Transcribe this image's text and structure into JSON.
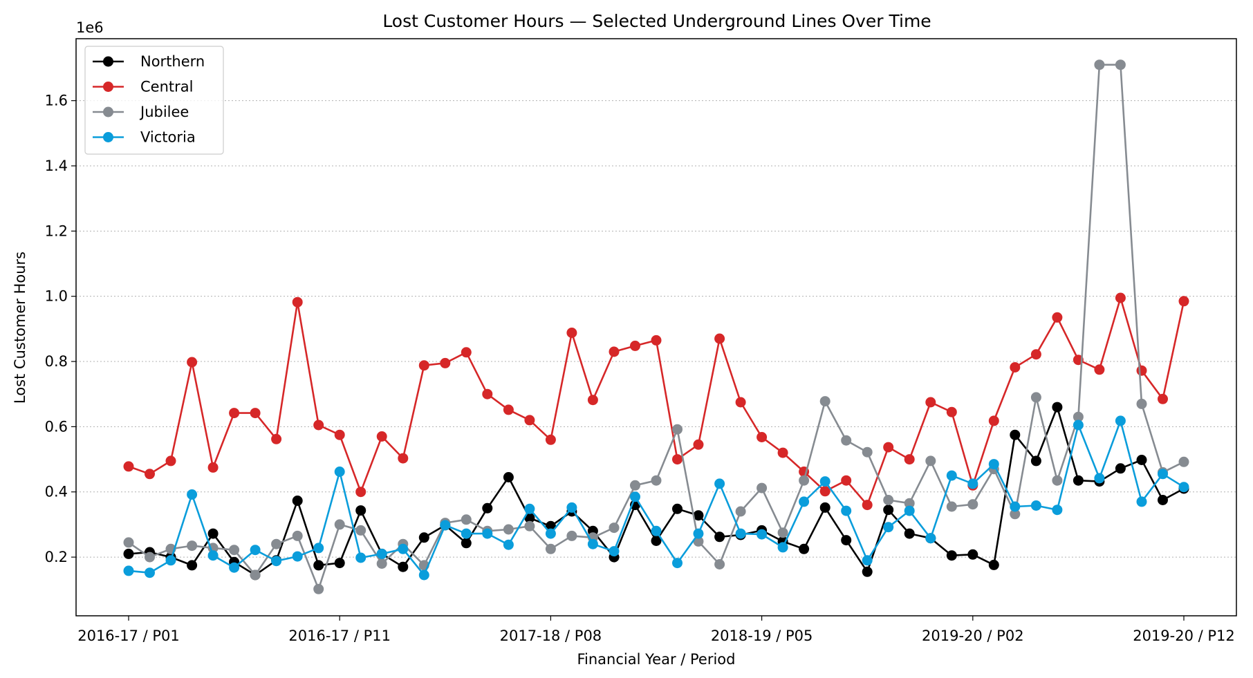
{
  "chart_data": {
    "type": "line",
    "title": "Lost Customer Hours — Selected Underground Lines Over Time",
    "xlabel": "Financial Year / Period",
    "ylabel": "Lost Customer Hours",
    "y_multiplier_label": "1e6",
    "ylim": [
      0.02,
      1.79
    ],
    "y_ticks": [
      0.2,
      0.4,
      0.6,
      0.8,
      1.0,
      1.2,
      1.4,
      1.6
    ],
    "y_tick_labels": [
      "0.2",
      "0.4",
      "0.6",
      "0.8",
      "1.0",
      "1.2",
      "1.4",
      "1.6"
    ],
    "x_tick_indices": [
      0,
      10,
      20,
      30,
      40,
      50
    ],
    "x_tick_labels": [
      "2016-17 / P01",
      "2016-17 / P11",
      "2017-18 / P08",
      "2018-19 / P05",
      "2019-20 / P02",
      "2019-20 / P12"
    ],
    "grid": "y-dotted",
    "legend_position": "upper-left",
    "series": [
      {
        "name": "Northern",
        "color": "#000000",
        "values": [
          0.21,
          0.215,
          0.2,
          0.175,
          0.272,
          0.185,
          0.145,
          0.19,
          0.373,
          0.175,
          0.182,
          0.343,
          0.21,
          0.17,
          0.26,
          0.298,
          0.243,
          0.35,
          0.445,
          0.32,
          0.295,
          0.34,
          0.28,
          0.2,
          0.36,
          0.25,
          0.348,
          0.328,
          0.262,
          0.268,
          0.282,
          0.248,
          0.225,
          0.352,
          0.252,
          0.155,
          0.345,
          0.272,
          0.258,
          0.205,
          0.208,
          0.176,
          0.575,
          0.495,
          0.66,
          0.435,
          0.432,
          0.472,
          0.498,
          0.375,
          0.41
        ]
      },
      {
        "name": "Central",
        "color": "#d62728",
        "values": [
          0.478,
          0.455,
          0.495,
          0.798,
          0.475,
          0.642,
          0.642,
          0.562,
          0.982,
          0.605,
          0.575,
          0.4,
          0.57,
          0.503,
          0.788,
          0.795,
          0.828,
          0.7,
          0.652,
          0.62,
          0.56,
          0.888,
          0.682,
          0.83,
          0.848,
          0.865,
          0.5,
          0.545,
          0.87,
          0.675,
          0.568,
          0.52,
          0.462,
          0.402,
          0.435,
          0.36,
          0.537,
          0.5,
          0.675,
          0.645,
          0.42,
          0.618,
          0.782,
          0.822,
          0.935,
          0.805,
          0.775,
          0.995,
          0.772,
          0.685,
          0.985
        ]
      },
      {
        "name": "Jubilee",
        "color": "#868b91",
        "values": [
          0.245,
          0.2,
          0.225,
          0.235,
          0.228,
          0.222,
          0.145,
          0.24,
          0.265,
          0.102,
          0.3,
          0.282,
          0.18,
          0.24,
          0.175,
          0.305,
          0.315,
          0.28,
          0.285,
          0.295,
          0.225,
          0.265,
          0.26,
          0.29,
          0.42,
          0.435,
          0.592,
          0.248,
          0.178,
          0.34,
          0.412,
          0.275,
          0.435,
          0.678,
          0.558,
          0.522,
          0.375,
          0.365,
          0.495,
          0.355,
          0.362,
          0.47,
          0.332,
          0.69,
          0.435,
          0.63,
          1.71,
          1.71,
          0.67,
          0.46,
          0.492
        ]
      },
      {
        "name": "Victoria",
        "color": "#0a9ddb",
        "values": [
          0.158,
          0.152,
          0.19,
          0.392,
          0.205,
          0.168,
          0.222,
          0.188,
          0.202,
          0.228,
          0.462,
          0.198,
          0.21,
          0.225,
          0.145,
          0.298,
          0.272,
          0.272,
          0.238,
          0.348,
          0.272,
          0.352,
          0.24,
          0.218,
          0.385,
          0.28,
          0.182,
          0.272,
          0.425,
          0.272,
          0.27,
          0.23,
          0.37,
          0.432,
          0.342,
          0.19,
          0.292,
          0.342,
          0.258,
          0.45,
          0.425,
          0.485,
          0.355,
          0.358,
          0.345,
          0.605,
          0.442,
          0.618,
          0.37,
          0.455,
          0.415
        ]
      }
    ]
  }
}
